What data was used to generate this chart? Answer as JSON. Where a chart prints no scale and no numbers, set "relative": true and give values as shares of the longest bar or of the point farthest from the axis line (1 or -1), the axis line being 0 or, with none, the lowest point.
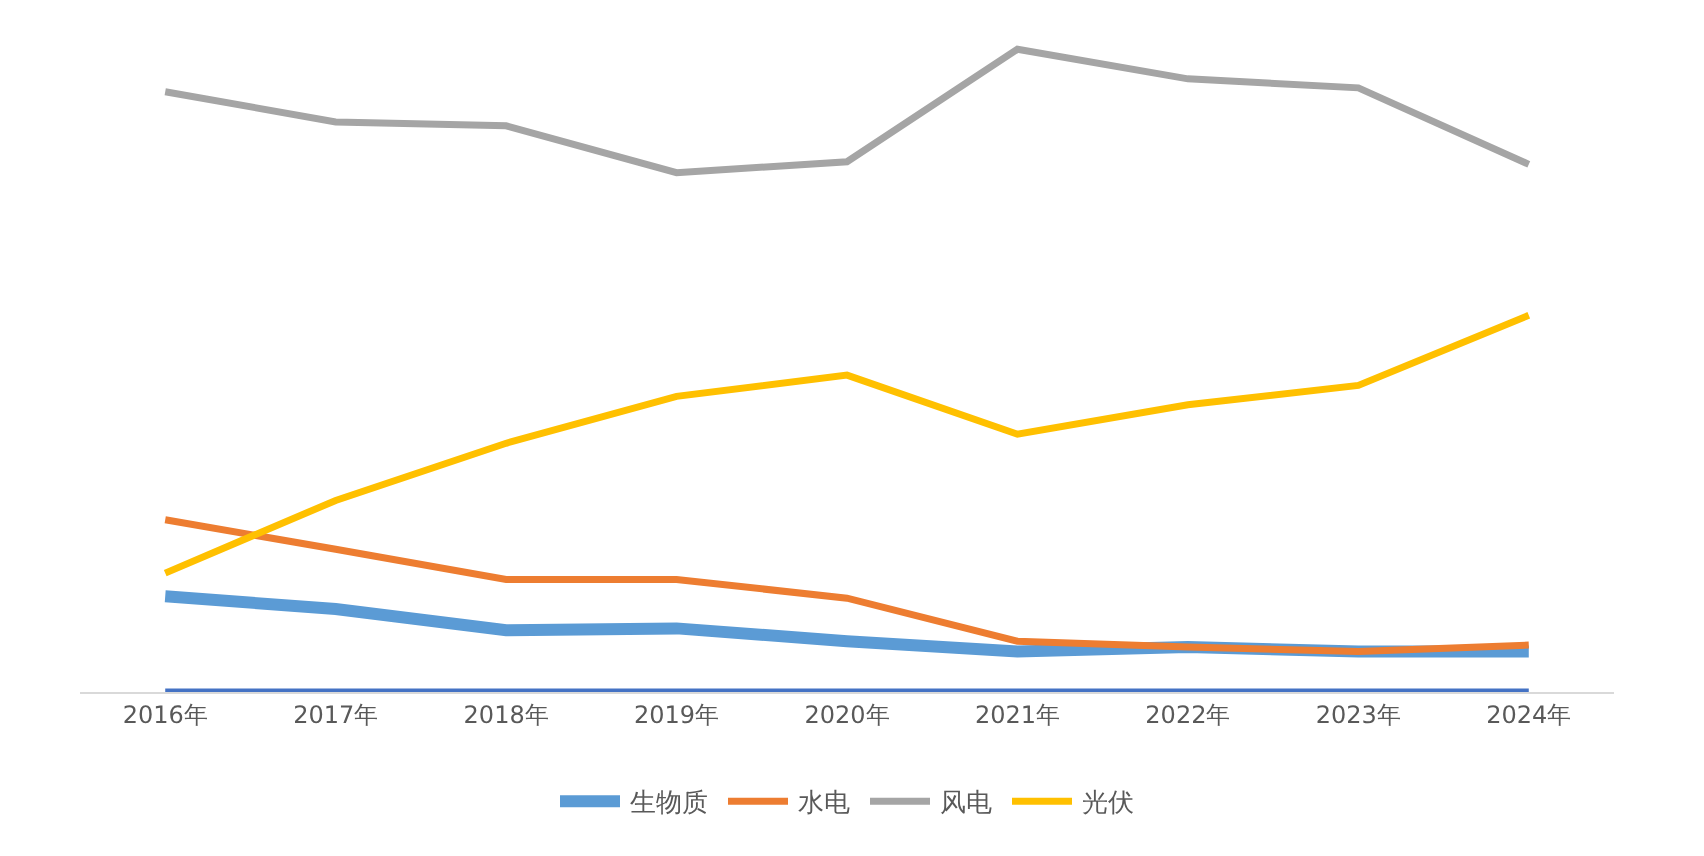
{
  "chart_data": {
    "type": "line",
    "relative": true,
    "legend": "bottom",
    "grid": false,
    "marker": "none",
    "line_style": "solid",
    "categories": [
      "2016年",
      "2017年",
      "2018年",
      "2019年",
      "2020年",
      "2021年",
      "2022年",
      "2023年",
      "2024年"
    ],
    "series": [
      {
        "name": "生物质",
        "color": "#5b9bd5",
        "values": [
          0.149,
          0.129,
          0.096,
          0.099,
          0.079,
          0.063,
          0.07,
          0.063,
          0.063
        ]
      },
      {
        "name": "水电",
        "color": "#ed7d31",
        "values": [
          0.268,
          0.222,
          0.175,
          0.175,
          0.146,
          0.079,
          0.07,
          0.063,
          0.073
        ]
      },
      {
        "name": "风电",
        "color": "#a5a5a5",
        "values": [
          0.934,
          0.887,
          0.881,
          0.808,
          0.825,
          1,
          0.954,
          0.94,
          0.821
        ]
      },
      {
        "name": "光伏",
        "color": "#ffc000",
        "values": [
          0.185,
          0.298,
          0.387,
          0.46,
          0.493,
          0.401,
          0.447,
          0.477,
          0.586
        ]
      },
      {
        "color": "#4472c4",
        "values": [
          0,
          0,
          0,
          0,
          0,
          0,
          0,
          0,
          0
        ]
      }
    ]
  }
}
